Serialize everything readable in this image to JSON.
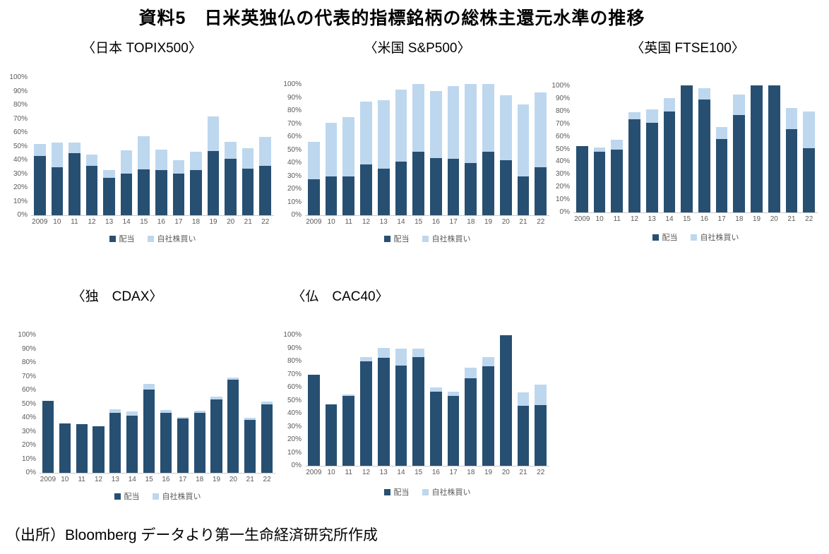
{
  "page": {
    "main_title": "資料5　日米英独仏の代表的指標銘柄の総株主還元水準の推移",
    "source_note": "（出所）Bloomberg データより第一生命経済研究所作成"
  },
  "colors": {
    "dividend": "#274F72",
    "buyback": "#BDD7EE",
    "axis_text": "#595959",
    "baseline": "#C9C9C9"
  },
  "axis": {
    "ymax": 100,
    "yticks": [
      "0%",
      "10%",
      "20%",
      "30%",
      "40%",
      "50%",
      "60%",
      "70%",
      "80%",
      "90%",
      "100%"
    ]
  },
  "legend": {
    "dividend_label": "配当",
    "buyback_label": "自社株買い"
  },
  "chart_data": [
    {
      "type": "bar",
      "stacked": true,
      "title": "〈日本 TOPIX500〉",
      "ylim": [
        0,
        100
      ],
      "grid": false,
      "legend_position": "bottom",
      "categories": [
        "2009",
        "10",
        "11",
        "12",
        "13",
        "14",
        "15",
        "16",
        "17",
        "18",
        "19",
        "20",
        "21",
        "22"
      ],
      "series": [
        {
          "name": "配当",
          "color": "#274F72",
          "values": [
            43,
            35,
            45,
            36,
            27,
            30.5,
            33.5,
            33,
            30.5,
            33,
            46.5,
            41,
            34,
            36
          ]
        },
        {
          "name": "自社株買い",
          "color": "#BDD7EE",
          "values": [
            9,
            18,
            8,
            8,
            6,
            16.5,
            24,
            14.5,
            9.5,
            13,
            25.5,
            12.5,
            14.5,
            21
          ]
        }
      ]
    },
    {
      "type": "bar",
      "stacked": true,
      "title": "〈米国 S&P500〉",
      "ylim": [
        0,
        100
      ],
      "grid": false,
      "legend_position": "bottom",
      "categories": [
        "2009",
        "10",
        "11",
        "12",
        "13",
        "14",
        "15",
        "16",
        "17",
        "18",
        "19",
        "20",
        "21",
        "22"
      ],
      "series": [
        {
          "name": "配当",
          "color": "#274F72",
          "values": [
            27.5,
            30,
            30,
            39,
            35.5,
            41,
            48.5,
            44,
            43.5,
            40,
            48.5,
            42,
            30,
            36.5
          ]
        },
        {
          "name": "自社株買い",
          "color": "#BDD7EE",
          "values": [
            28.5,
            41,
            45,
            48,
            52.5,
            55,
            52,
            51,
            55.5,
            60.5,
            52,
            50,
            55,
            57.5
          ]
        }
      ]
    },
    {
      "type": "bar",
      "stacked": true,
      "title": "〈英国 FTSE100〉",
      "ylim": [
        0,
        100
      ],
      "grid": false,
      "legend_position": "bottom",
      "categories": [
        "2009",
        "10",
        "11",
        "12",
        "13",
        "14",
        "15",
        "16",
        "17",
        "18",
        "19",
        "20",
        "21",
        "22"
      ],
      "series": [
        {
          "name": "配当",
          "color": "#274F72",
          "values": [
            52.5,
            48,
            49.5,
            73.5,
            71,
            80,
            100.5,
            89.5,
            58,
            77,
            100.5,
            100.5,
            66,
            51
          ]
        },
        {
          "name": "自社株買い",
          "color": "#BDD7EE",
          "values": [
            0,
            3.5,
            8,
            6,
            10.5,
            10.5,
            0,
            9,
            9.5,
            16.5,
            0,
            0,
            16.5,
            29
          ]
        }
      ]
    },
    {
      "type": "bar",
      "stacked": true,
      "title": "〈独　CDAX〉",
      "ylim": [
        0,
        100
      ],
      "grid": false,
      "legend_position": "bottom",
      "categories": [
        "2009",
        "10",
        "11",
        "12",
        "13",
        "14",
        "15",
        "16",
        "17",
        "18",
        "19",
        "20",
        "21",
        "22"
      ],
      "series": [
        {
          "name": "配当",
          "color": "#274F72",
          "values": [
            52.5,
            36,
            35.5,
            34,
            43.5,
            41.5,
            60.5,
            43.5,
            39.5,
            43.5,
            53.5,
            67.5,
            38.5,
            49.5
          ]
        },
        {
          "name": "自社株買い",
          "color": "#BDD7EE",
          "values": [
            0,
            0,
            0,
            0,
            2.5,
            3,
            4,
            2,
            1,
            1.5,
            2,
            1.5,
            1.5,
            2.5
          ]
        }
      ]
    },
    {
      "type": "bar",
      "stacked": true,
      "title": "〈仏　CAC40〉",
      "ylim": [
        0,
        100
      ],
      "grid": false,
      "legend_position": "bottom",
      "categories": [
        "2009",
        "10",
        "11",
        "12",
        "13",
        "14",
        "15",
        "16",
        "17",
        "18",
        "19",
        "20",
        "21",
        "22"
      ],
      "series": [
        {
          "name": "配当",
          "color": "#274F72",
          "values": [
            70,
            47,
            53.5,
            80,
            82.5,
            77,
            83.5,
            57,
            53.5,
            67,
            76,
            100,
            46,
            46.5
          ]
        },
        {
          "name": "自社株買い",
          "color": "#BDD7EE",
          "values": [
            0,
            0,
            1,
            3,
            8,
            12.5,
            6,
            3,
            3.5,
            8,
            7.5,
            0,
            10,
            15.5
          ]
        }
      ]
    }
  ]
}
